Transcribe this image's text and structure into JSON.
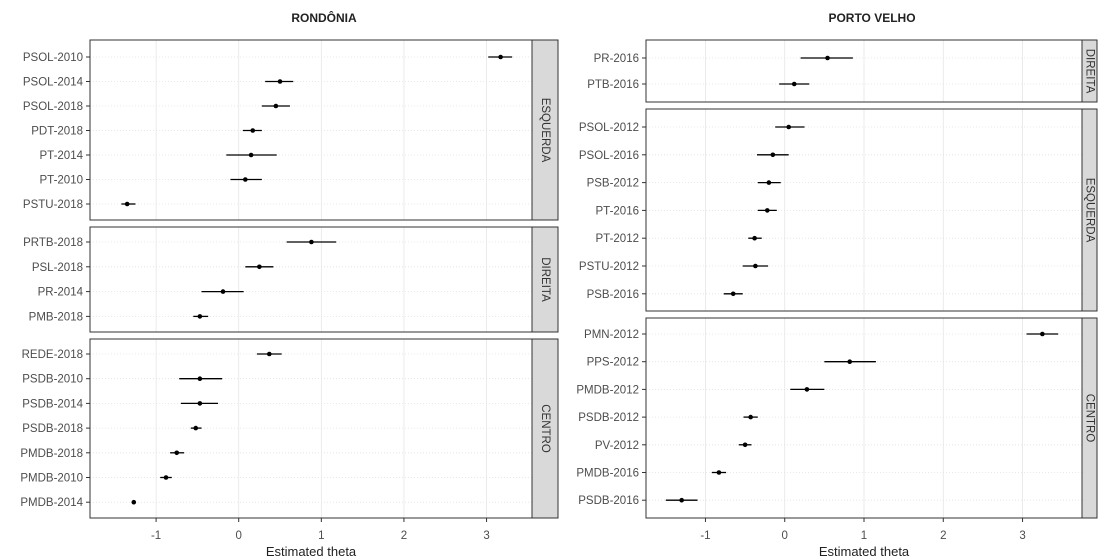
{
  "chart_data": [
    {
      "type": "scatter",
      "title": "RONDÔNIA",
      "xlabel": "Estimated theta",
      "xlim": [
        -1.8,
        3.55
      ],
      "xticks": [
        -1,
        0,
        1,
        2,
        3
      ],
      "grid": true,
      "facets": [
        {
          "label": "ESQUERDA",
          "points": [
            {
              "party": "PSOL-2010",
              "estimate": 3.17,
              "lower": 3.02,
              "upper": 3.31
            },
            {
              "party": "PSOL-2014",
              "estimate": 0.5,
              "lower": 0.32,
              "upper": 0.66
            },
            {
              "party": "PSOL-2018",
              "estimate": 0.45,
              "lower": 0.28,
              "upper": 0.62
            },
            {
              "party": "PDT-2018",
              "estimate": 0.17,
              "lower": 0.05,
              "upper": 0.28
            },
            {
              "party": "PT-2014",
              "estimate": 0.15,
              "lower": -0.15,
              "upper": 0.46
            },
            {
              "party": "PT-2010",
              "estimate": 0.08,
              "lower": -0.1,
              "upper": 0.28
            },
            {
              "party": "PSTU-2018",
              "estimate": -1.35,
              "lower": -1.42,
              "upper": -1.25
            }
          ]
        },
        {
          "label": "DIREITA",
          "points": [
            {
              "party": "PRTB-2018",
              "estimate": 0.88,
              "lower": 0.58,
              "upper": 1.18
            },
            {
              "party": "PSL-2018",
              "estimate": 0.25,
              "lower": 0.08,
              "upper": 0.42
            },
            {
              "party": "PR-2014",
              "estimate": -0.19,
              "lower": -0.45,
              "upper": 0.06
            },
            {
              "party": "PMB-2018",
              "estimate": -0.47,
              "lower": -0.55,
              "upper": -0.37
            }
          ]
        },
        {
          "label": "CENTRO",
          "points": [
            {
              "party": "REDE-2018",
              "estimate": 0.37,
              "lower": 0.22,
              "upper": 0.52
            },
            {
              "party": "PSDB-2010",
              "estimate": -0.47,
              "lower": -0.72,
              "upper": -0.2
            },
            {
              "party": "PSDB-2014",
              "estimate": -0.47,
              "lower": -0.7,
              "upper": -0.25
            },
            {
              "party": "PSDB-2018",
              "estimate": -0.52,
              "lower": -0.58,
              "upper": -0.45
            },
            {
              "party": "PMDB-2018",
              "estimate": -0.75,
              "lower": -0.83,
              "upper": -0.66
            },
            {
              "party": "PMDB-2010",
              "estimate": -0.88,
              "lower": -0.95,
              "upper": -0.81
            },
            {
              "party": "PMDB-2014",
              "estimate": -1.27,
              "lower": -1.29,
              "upper": -1.25
            }
          ]
        }
      ]
    },
    {
      "type": "scatter",
      "title": "PORTO VELHO",
      "xlabel": "Estimated theta",
      "xlim": [
        -1.75,
        3.75
      ],
      "xticks": [
        -1,
        0,
        1,
        2,
        3
      ],
      "grid": true,
      "facets": [
        {
          "label": "DIREITA",
          "points": [
            {
              "party": "PR-2016",
              "estimate": 0.54,
              "lower": 0.2,
              "upper": 0.86
            },
            {
              "party": "PTB-2016",
              "estimate": 0.12,
              "lower": -0.07,
              "upper": 0.31
            }
          ]
        },
        {
          "label": "ESQUERDA",
          "points": [
            {
              "party": "PSOL-2012",
              "estimate": 0.05,
              "lower": -0.12,
              "upper": 0.25
            },
            {
              "party": "PSOL-2016",
              "estimate": -0.15,
              "lower": -0.35,
              "upper": 0.05
            },
            {
              "party": "PSB-2012",
              "estimate": -0.2,
              "lower": -0.34,
              "upper": -0.05
            },
            {
              "party": "PT-2016",
              "estimate": -0.22,
              "lower": -0.34,
              "upper": -0.1
            },
            {
              "party": "PT-2012",
              "estimate": -0.38,
              "lower": -0.46,
              "upper": -0.29
            },
            {
              "party": "PSTU-2012",
              "estimate": -0.37,
              "lower": -0.53,
              "upper": -0.21
            },
            {
              "party": "PSB-2016",
              "estimate": -0.65,
              "lower": -0.77,
              "upper": -0.53
            }
          ]
        },
        {
          "label": "CENTRO",
          "points": [
            {
              "party": "PMN-2012",
              "estimate": 3.25,
              "lower": 3.05,
              "upper": 3.45
            },
            {
              "party": "PPS-2012",
              "estimate": 0.82,
              "lower": 0.5,
              "upper": 1.15
            },
            {
              "party": "PMDB-2012",
              "estimate": 0.28,
              "lower": 0.07,
              "upper": 0.5
            },
            {
              "party": "PSDB-2012",
              "estimate": -0.43,
              "lower": -0.52,
              "upper": -0.34
            },
            {
              "party": "PV-2012",
              "estimate": -0.5,
              "lower": -0.58,
              "upper": -0.42
            },
            {
              "party": "PMDB-2016",
              "estimate": -0.83,
              "lower": -0.92,
              "upper": -0.74
            },
            {
              "party": "PSDB-2016",
              "estimate": -1.3,
              "lower": -1.5,
              "upper": -1.1
            }
          ]
        }
      ]
    }
  ],
  "colors": {
    "point": "#000000",
    "grid": "#e6e6e6",
    "panel_border": "#333333",
    "strip_fill": "#d9d9d9",
    "text": "#4d4d4d"
  }
}
